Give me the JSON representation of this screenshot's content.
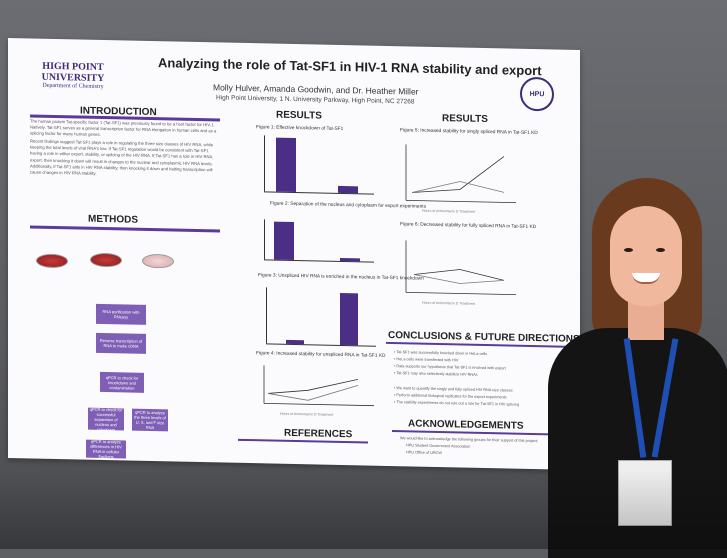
{
  "poster": {
    "title": "Analyzing the role of Tat-SF1 in HIV-1 RNA stability and export",
    "authors": "Molly Hulver, Amanda Goodwin, and Dr. Heather Miller",
    "affiliation": "High Point University, 1 N. University Parkway, High Point, NC 27268",
    "logo": {
      "line1": "HIGH POINT",
      "line2": "UNIVERSITY",
      "line3": "Department of Chemistry"
    },
    "sections": {
      "introduction": "INTRODUCTION",
      "methods": "METHODS",
      "results_left": "RESULTS",
      "results_right": "RESULTS",
      "conclusions": "CONCLUSIONS & FUTURE DIRECTIONS",
      "references": "REFERENCES",
      "acknowledgements": "ACKNOWLEDGEMENTS"
    },
    "intro_paragraphs": [
      "The human protein Tat-specific factor 1 (Tat-SF1) was previously found to be a host factor for HIV-1. Natively, Tat-SF1 serves as a general transcription factor for RNA elongation in human cells and as a splicing factor for many human genes.",
      "Recent findings suggest Tat-SF1 plays a role in regulating the three size classes of HIV RNA, while keeping the total levels of viral RNA's low. If Tat-SF1 regulation would be consistent with Tat-SF1 having a role in either export, stability, or splicing of the HIV RNA. If Tat-SF1 has a role in HIV RNA export, then knocking it down will result in changes to the nuclear and cytoplasmic HIV RNA levels. Additionally, if Tat-SF1 aids in HIV RNA stability, then knocking it down and halting transcription will cause changes in HIV RNA stability."
    ],
    "methods_boxes": [
      "RNA purification with RNeasy",
      "Reverse transcription of RNA to make cDNA",
      "qPCR to check for knockdown and contamination",
      "qPCR to check for successful separation of nucleus and cytoplasm",
      "qPCR to analyze the three levels of U, S, and F size RNA",
      "qPCR to analyze differences in HIV RNA in cellular fractions"
    ],
    "figures": {
      "fig1": "Figure 1: Effective knockdown of Tat-SF1",
      "fig2": "Figure 2: Separation of the nucleus and cytoplasm for export experiments",
      "fig3": "Figure 3: Unspliced HIV RNA is enriched in the nucleus in Tat-SF1 knockdown",
      "fig4": "Figure 4: Increased stability for unspliced RNA in Tat-SF1 KD",
      "fig5": "Figure 5: Increased stability for singly spliced RNA in Tat-SF1 KD",
      "fig6": "Figure 6: Decreased stability for fully spliced RNA in Tat-SF1 KD",
      "xlabel_time": "Hours of Actinomycin D Treatment"
    },
    "acknowledgement_lines": [
      "We would like to acknowledge the following groups for their support of this project:",
      "HPU Student Government Association",
      "HPU Office of URCW"
    ],
    "colors": {
      "accent": "#5b3b9a",
      "bar": "#4b2f87",
      "box": "#7f5fb5"
    }
  }
}
